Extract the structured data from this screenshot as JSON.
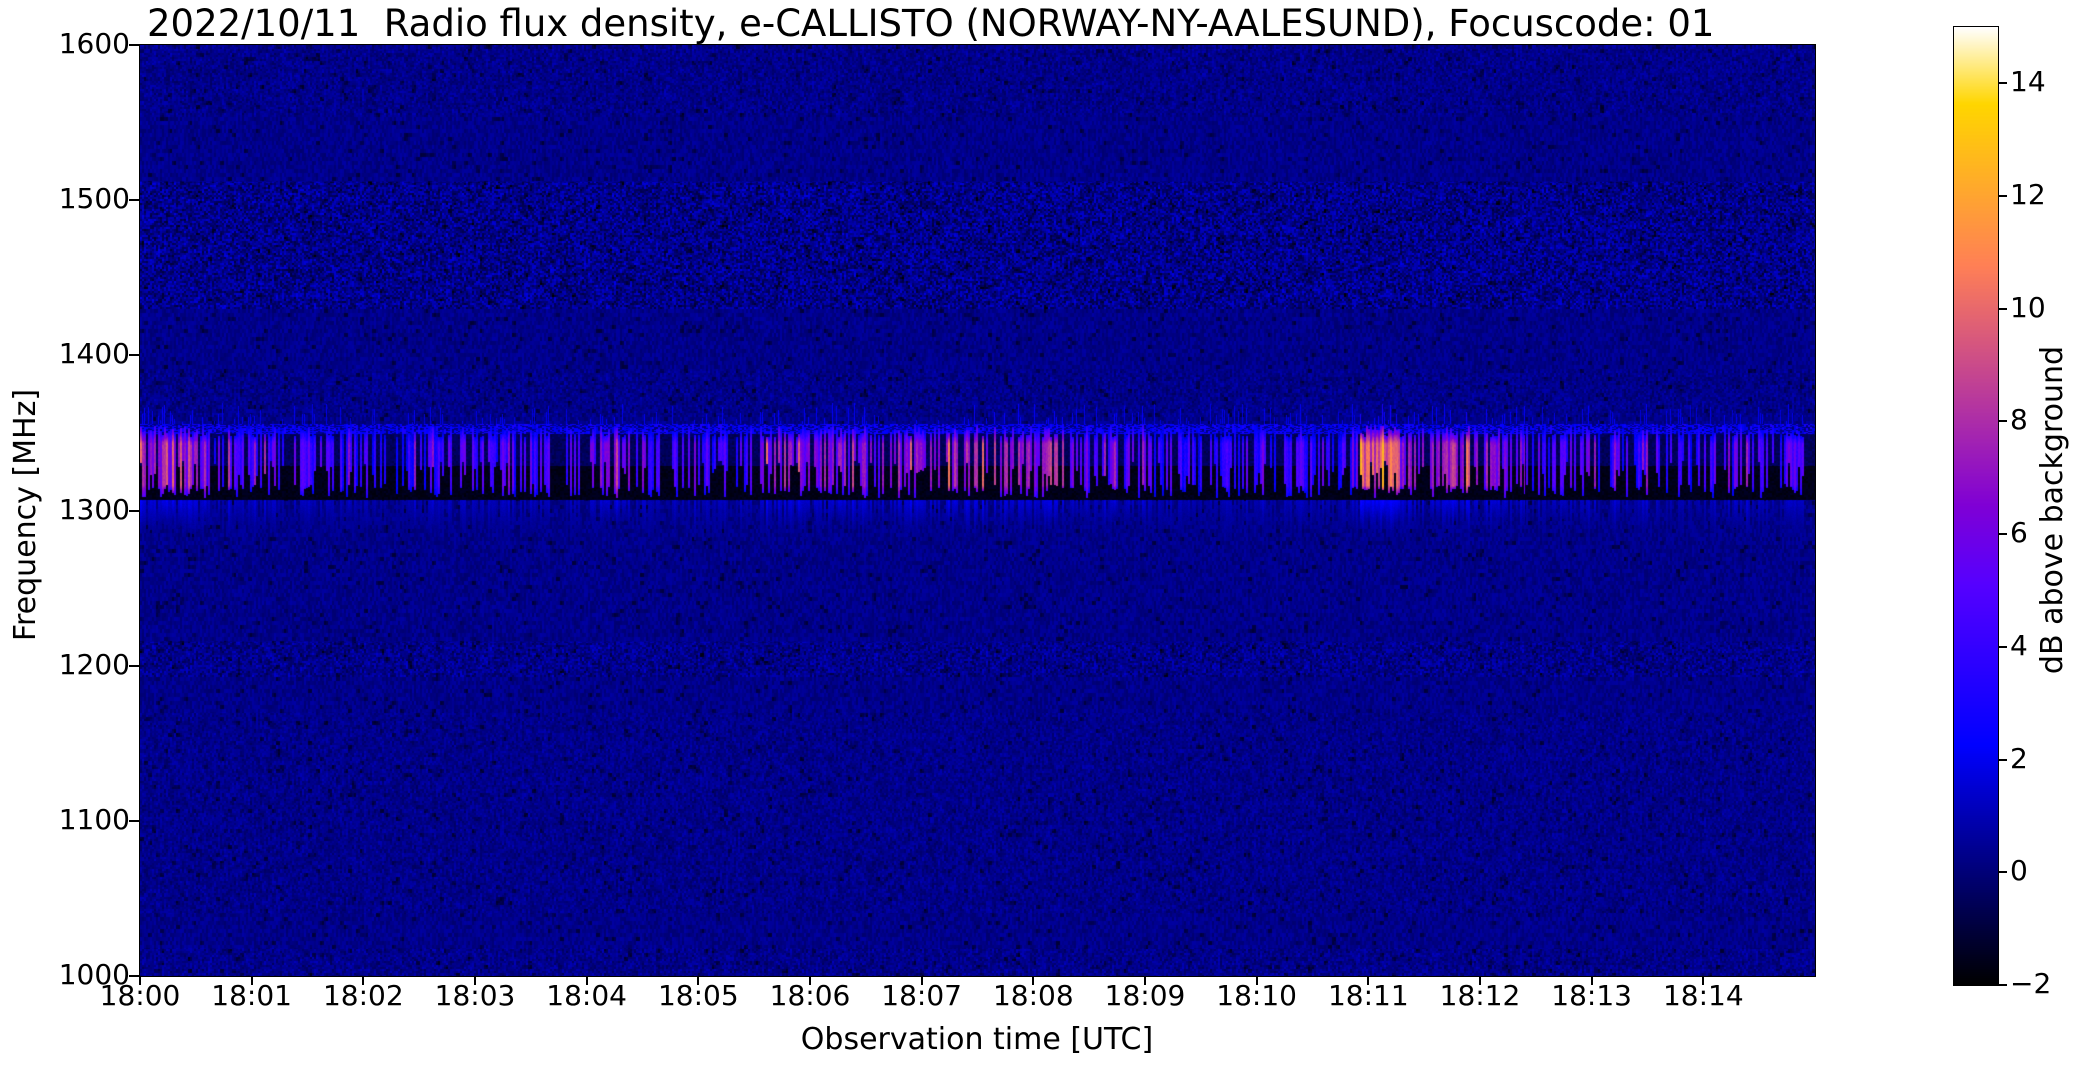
{
  "chart_data": {
    "type": "heatmap",
    "title": "2022/10/11  Radio flux density, e-CALLISTO (NORWAY-NY-AALESUND), Focuscode: 01",
    "xlabel": "Observation time [UTC]",
    "ylabel": "Frequency [MHz]",
    "colorbar_label": "dB above background",
    "x_tick_labels": [
      "18:00",
      "18:01",
      "18:02",
      "18:03",
      "18:04",
      "18:05",
      "18:06",
      "18:07",
      "18:08",
      "18:09",
      "18:10",
      "18:11",
      "18:12",
      "18:13",
      "18:14"
    ],
    "x_range_minutes": [
      0,
      15
    ],
    "y_tick_values": [
      1600,
      1500,
      1400,
      1300,
      1200,
      1100,
      1000
    ],
    "y_range_mhz": [
      1000,
      1600
    ],
    "colorbar_tick_values": [
      14,
      12,
      10,
      8,
      6,
      4,
      2,
      0,
      -2
    ],
    "colorbar_range_db": [
      -2,
      15
    ],
    "colormap": "gnuplot2",
    "background_level_db": 0.3,
    "background_color_hex": "#00007e",
    "rfi_band": {
      "freq_low_mhz": 1307,
      "freq_high_mhz": 1356,
      "band_floor_db": -1.6,
      "stripe_base_db": [
        2.0,
        5.2
      ],
      "default_boost_db": 0.7,
      "default_density": 0.55,
      "clusters": [
        {
          "t_start_min": 0.0,
          "t_end_min": 0.6,
          "boost_db": 2.6,
          "density": 0.78
        },
        {
          "t_start_min": 5.5,
          "t_end_min": 8.3,
          "boost_db": 3.2,
          "density": 0.62
        },
        {
          "t_start_min": 10.92,
          "t_end_min": 11.28,
          "boost_db": 5.6,
          "density": 0.97
        },
        {
          "t_start_min": 11.28,
          "t_end_min": 12.4,
          "boost_db": 2.6,
          "density": 0.62
        }
      ]
    },
    "noise_bands": [
      {
        "freq_low_mhz": 1555,
        "freq_high_mhz": 1600,
        "amp_db": 0.45
      },
      {
        "freq_low_mhz": 1430,
        "freq_high_mhz": 1512,
        "amp_db": 1.15
      },
      {
        "freq_low_mhz": 1360,
        "freq_high_mhz": 1390,
        "amp_db": 0.4
      },
      {
        "freq_low_mhz": 1193,
        "freq_high_mhz": 1215,
        "amp_db": 0.8
      },
      {
        "freq_low_mhz": 1040,
        "freq_high_mhz": 1170,
        "amp_db": 0.35
      },
      {
        "freq_low_mhz": 1000,
        "freq_high_mhz": 1018,
        "amp_db": 0.5
      }
    ]
  }
}
